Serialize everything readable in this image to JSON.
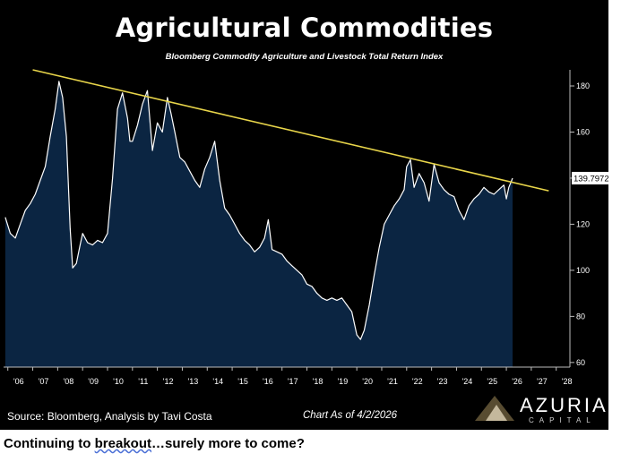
{
  "chart_data": {
    "type": "area",
    "title": "Agricultural Commodities",
    "subtitle": "Bloomberg Commodity Agriculture and Livestock Total Return Index",
    "x_tick_labels": [
      "'06",
      "'07",
      "'08",
      "'09",
      "'10",
      "'11",
      "'12",
      "'13",
      "'14",
      "'15",
      "'16",
      "'17",
      "'18",
      "'19",
      "'20",
      "'21",
      "'22",
      "'23",
      "'24",
      "'25",
      "'26",
      "'27",
      "'28"
    ],
    "y_ticks": [
      60,
      80,
      100,
      120,
      140,
      160,
      180
    ],
    "ylim": [
      58,
      187
    ],
    "xlim": [
      2005.83,
      2028.55
    ],
    "last_value_label": "139.7972",
    "grid": false,
    "series": [
      {
        "x": [
          2005.9,
          2006.1,
          2006.3,
          2006.5,
          2006.7,
          2006.9,
          2007.1,
          2007.3,
          2007.5,
          2007.7,
          2007.9,
          2008.05,
          2008.2,
          2008.35,
          2008.5,
          2008.6,
          2008.75,
          2008.9,
          2009.0,
          2009.2,
          2009.4,
          2009.6,
          2009.8,
          2010.0,
          2010.2,
          2010.4,
          2010.6,
          2010.8,
          2010.9,
          2011.0,
          2011.2,
          2011.4,
          2011.6,
          2011.8,
          2012.0,
          2012.2,
          2012.4,
          2012.55,
          2012.7,
          2012.9,
          2013.1,
          2013.3,
          2013.5,
          2013.7,
          2013.9,
          2014.1,
          2014.3,
          2014.5,
          2014.7,
          2014.9,
          2015.1,
          2015.3,
          2015.5,
          2015.7,
          2015.9,
          2016.1,
          2016.3,
          2016.45,
          2016.6,
          2016.8,
          2017.0,
          2017.2,
          2017.4,
          2017.6,
          2017.8,
          2018.0,
          2018.2,
          2018.4,
          2018.6,
          2018.8,
          2019.0,
          2019.2,
          2019.4,
          2019.6,
          2019.8,
          2020.0,
          2020.15,
          2020.3,
          2020.5,
          2020.7,
          2020.9,
          2021.1,
          2021.3,
          2021.5,
          2021.7,
          2021.9,
          2022.0,
          2022.15,
          2022.3,
          2022.5,
          2022.7,
          2022.9,
          2023.1,
          2023.3,
          2023.5,
          2023.7,
          2023.9,
          2024.1,
          2024.3,
          2024.5,
          2024.7,
          2024.9,
          2025.1,
          2025.3,
          2025.5,
          2025.7,
          2025.9,
          2026.0,
          2026.1,
          2026.25
        ],
        "values": [
          123,
          116,
          114,
          120,
          126,
          129,
          133,
          139,
          145,
          158,
          170,
          182,
          175,
          158,
          118,
          101,
          103,
          111,
          116,
          112,
          111,
          113,
          112,
          116,
          140,
          170,
          177,
          166,
          156,
          156,
          163,
          172,
          178,
          152,
          164,
          160,
          175,
          168,
          160,
          149,
          147,
          143,
          139,
          136,
          144,
          149,
          156,
          139,
          127,
          124,
          120,
          116,
          113,
          111,
          108,
          110,
          114,
          122,
          109,
          108,
          107,
          104,
          102,
          100,
          98,
          94,
          93,
          90,
          88,
          87,
          88,
          87,
          88,
          85,
          82,
          72,
          70,
          74,
          85,
          98,
          110,
          120,
          124,
          128,
          131,
          135,
          145,
          148,
          136,
          142,
          138,
          130,
          146,
          138,
          135,
          133,
          132,
          126,
          122,
          128,
          131,
          133,
          136,
          134,
          133,
          135,
          137,
          131,
          136,
          140
        ]
      }
    ],
    "trendline": {
      "x": [
        2007.0,
        2027.7
      ],
      "y": [
        187,
        134.5
      ],
      "color": "#e8d54a"
    },
    "colors": {
      "background": "#000000",
      "area_fill": "#0b2542",
      "line": "#ffffff",
      "trendline": "#e8d54a"
    }
  },
  "footer": {
    "source": "Source: Bloomberg, Analysis by Tavi Costa",
    "as_of": "Chart As of 4/2/2026"
  },
  "logo": {
    "name": "AZURIA",
    "sub": "CAPITAL"
  },
  "caption": {
    "before": "Continuing to ",
    "link": "breakout",
    "after": "…surely more to come?"
  }
}
